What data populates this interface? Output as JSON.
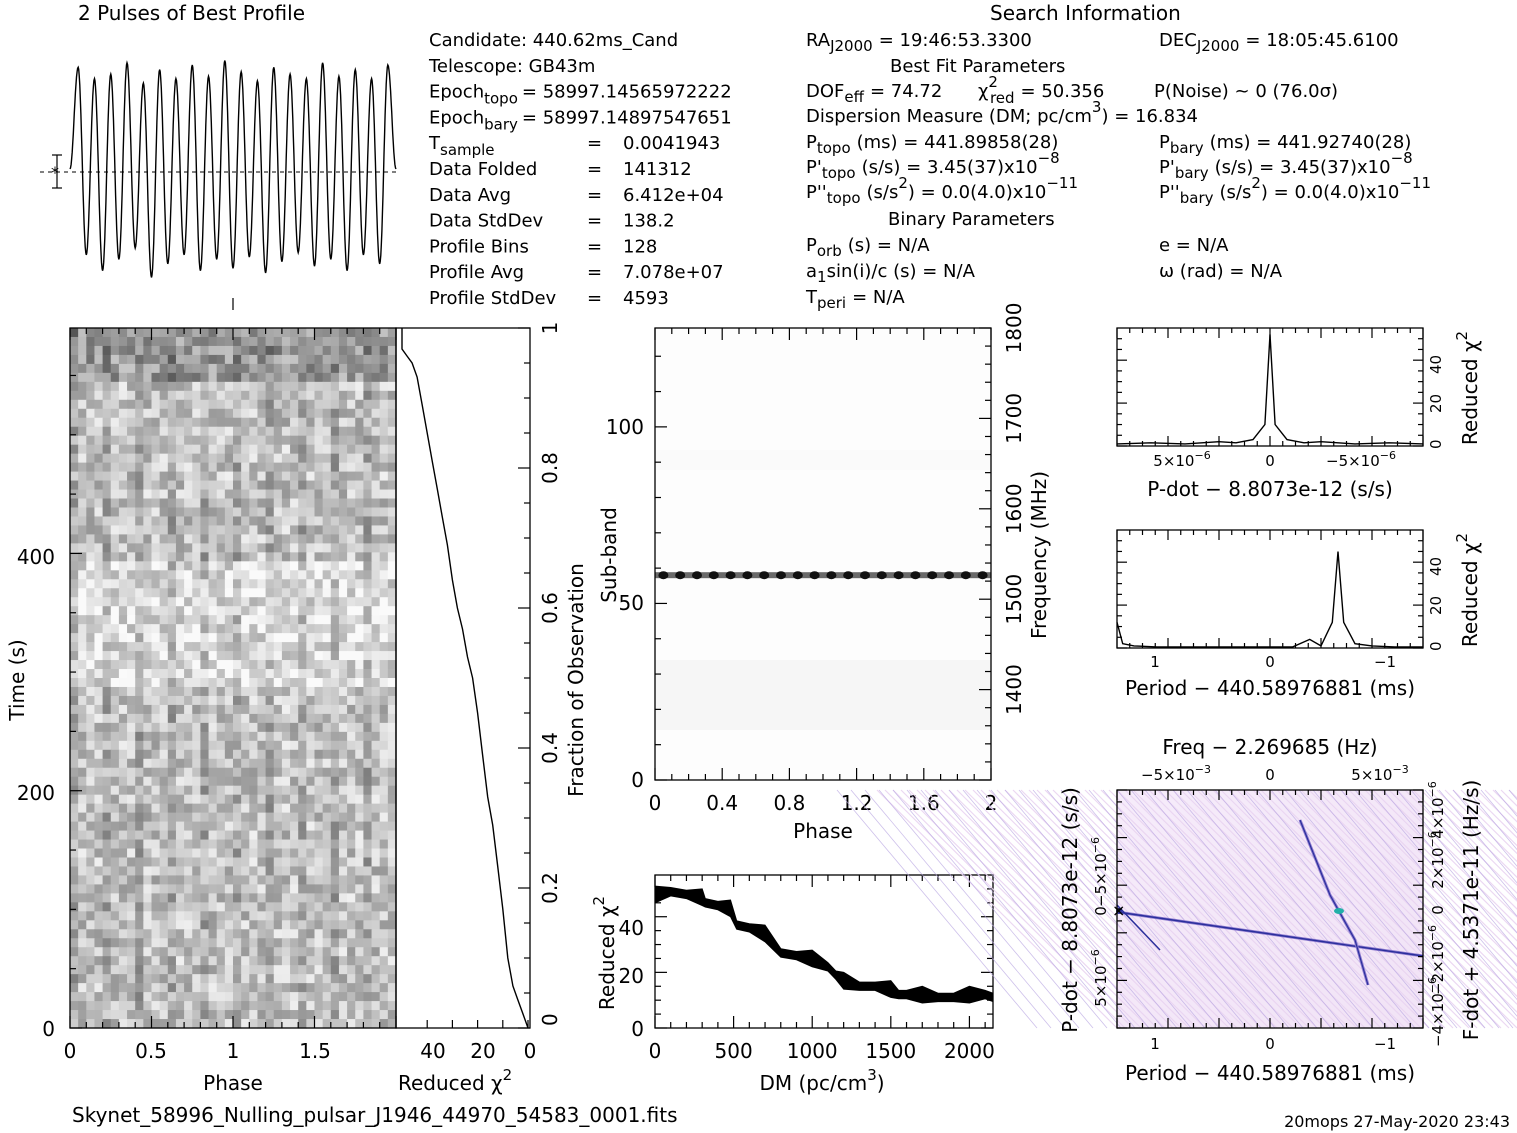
{
  "header": {
    "left_title": "2 Pulses of Best Profile",
    "search_title": "Search Information",
    "best_fit_title": "Best Fit Parameters",
    "binary_title": "Binary Parameters"
  },
  "info_left": [
    {
      "label": "Candidate:  440.62ms_Cand"
    },
    {
      "label": "Telescope:  GB43m"
    },
    {
      "label": "Epoch",
      "sub": "topo",
      "value": "= 58997.14565972222"
    },
    {
      "label": "Epoch",
      "sub": "bary",
      "value": "= 58997.14897547651"
    },
    {
      "label": "T",
      "sub": "sample",
      "eq": "=",
      "value": "0.0041943"
    },
    {
      "label": "Data Folded",
      "eq": "=",
      "value": "141312"
    },
    {
      "label": "Data Avg",
      "eq": "=",
      "value": "6.412e+04"
    },
    {
      "label": "Data StdDev",
      "eq": "=",
      "value": "138.2"
    },
    {
      "label": "Profile Bins",
      "eq": "=",
      "value": "128"
    },
    {
      "label": "Profile Avg",
      "eq": "=",
      "value": "7.078e+07"
    },
    {
      "label": "Profile StdDev",
      "eq": "=",
      "value": "4593"
    }
  ],
  "search_info": {
    "ra_label": "RA",
    "ra_sub": "J2000",
    "ra_value": "= 19:46:53.3300",
    "dec_label": "DEC",
    "dec_sub": "J2000",
    "dec_value": "= 18:05:45.6100",
    "dof_label": "DOF",
    "dof_sub": "eff",
    "dof_value": "= 74.72",
    "chi_label": "χ",
    "chi_sup": "2",
    "chi_sub": "red",
    "chi_value": "= 50.356",
    "pnoise": "P(Noise) ~ 0   (76.0σ)",
    "dm_line_a": "Dispersion Measure (DM; pc/cm",
    "dm_line_sup": "3",
    "dm_line_b": ") = 16.834",
    "ptopo_label": "P",
    "ptopo_sub": "topo",
    "ptopo_value": "(ms) =  441.89858(28)",
    "pbary_label": "P",
    "pbary_sub": "bary",
    "pbary_value": "(ms) =  441.92740(28)",
    "pdtopo_label": "P'",
    "pdtopo_sub": "topo",
    "pdtopo_value": "(s/s) =  3.45(37)x10",
    "pdtopo_exp": "−8",
    "pdbary_label": "P'",
    "pdbary_sub": "bary",
    "pdbary_value": "(s/s) =  3.45(37)x10",
    "pdbary_exp": "−8",
    "pddtopo_label": "P''",
    "pddtopo_sub": "topo",
    "pddtopo_a": "(s/s",
    "pddtopo_sup": "2",
    "pddtopo_value": ") = 0.0(4.0)x10",
    "pddtopo_exp": "−11",
    "pddbary_label": "P''",
    "pddbary_sub": "bary",
    "pddbary_a": "(s/s",
    "pddbary_sup": "2",
    "pddbary_value": ") = 0.0(4.0)x10",
    "pddbary_exp": "−11"
  },
  "binary": {
    "porb_label": "P",
    "porb_sub": "orb",
    "porb_value": "(s) = N/A",
    "a1_a": "a",
    "a1_sub": "1",
    "a1_b": "sin(i)/c (s) = N/A",
    "tperi_label": "T",
    "tperi_sub": "peri",
    "tperi_value": "= N/A",
    "e_line": "e = N/A",
    "omega_line": "ω (rad) = N/A"
  },
  "axes": {
    "time_label": "Time (s)",
    "phase_label": "Phase",
    "redchi_a": "Reduced χ",
    "redchi_sup": "2",
    "frac_label": "Fraction of Observation",
    "subband_label": "Sub-band",
    "freq_label": "Frequency (MHz)",
    "dm_a": "DM (pc/cm",
    "dm_sup": "3",
    "dm_b": ")",
    "pdot_label": "P-dot − 8.8073e-12 (s/s)",
    "period_label": "Period − 440.58976881 (ms)",
    "freq_top_label": "Freq − 2.269685 (Hz)",
    "pdot_left_label": "P-dot − 8.8073e-12 (s/s)",
    "fdot_right_label": "F-dot + 4.5371e-11 (Hz/s)"
  },
  "ticks": {
    "time_y": [
      "0",
      "200",
      "400"
    ],
    "phase_x": [
      "0",
      "0.5",
      "1",
      "1.5"
    ],
    "redchi_x": [
      "40",
      "20",
      "0"
    ],
    "frac_y": [
      "0",
      "0.2",
      "0.4",
      "0.6",
      "0.8",
      "1"
    ],
    "subband_y": [
      "0",
      "50",
      "100"
    ],
    "freq_y": [
      "1400",
      "1500",
      "1600",
      "1700",
      "1800"
    ],
    "phase2_x": [
      "0",
      "0.4",
      "0.8",
      "1.2",
      "1.6",
      "2"
    ],
    "dm_x": [
      "0",
      "500",
      "1000",
      "1500",
      "2000"
    ],
    "dmchi_y": [
      "0",
      "20",
      "40"
    ],
    "pdot_x_a": "5×10",
    "pdot_x_a_exp": "−6",
    "pdot_x_b": "0",
    "pdot_x_c": "−5×10",
    "pdot_x_c_exp": "−6",
    "small_chi_y": [
      "0",
      "20",
      "40"
    ],
    "period_x": [
      "1",
      "0",
      "−1"
    ],
    "freq_top_a": "−5×10",
    "freq_top_a_exp": "−3",
    "freq_top_b": "0",
    "freq_top_c": "5×10",
    "freq_top_c_exp": "−3",
    "pp_left_a": "−5×10",
    "pp_left_exp": "−6",
    "pp_left_b": "0",
    "pp_left_c": "5×10",
    "pp_right_a": "4×10",
    "pp_right_exp": "−6",
    "pp_right_b": "2×10",
    "pp_right_c": "0",
    "pp_right_d": "−2×10",
    "pp_right_e": "−4×10"
  },
  "footer": {
    "filename": "Skynet_58996_Nulling_pulsar_J1946_44970_54583_0001.fits",
    "stamp": "20mops 27-May-2020 23:43"
  },
  "chart_data": [
    {
      "type": "line",
      "name": "profile",
      "title": "2 Pulses of Best Profile",
      "x_range": [
        0,
        2
      ],
      "pulses_shown": 2,
      "oscillations_per_pulse": 10,
      "note_values": "relative amplitude samples",
      "values": [
        0.5,
        0.95,
        0.12,
        0.9,
        0.05,
        0.92,
        0.1,
        0.97,
        0.15,
        0.88,
        0.02,
        0.94,
        0.08,
        0.9,
        0.12,
        0.96,
        0.05,
        0.91,
        0.1,
        0.98,
        0.06,
        0.93,
        0.11,
        0.89,
        0.04,
        0.95,
        0.09,
        0.92,
        0.13,
        0.9,
        0.07,
        0.97,
        0.1,
        0.91,
        0.05,
        0.94,
        0.12,
        0.9,
        0.08,
        0.96,
        0.5
      ]
    },
    {
      "type": "heatmap",
      "name": "time-phase",
      "xlabel": "Phase",
      "ylabel": "Time (s)",
      "xlim": [
        0,
        2
      ],
      "ylim": [
        0,
        590
      ]
    },
    {
      "type": "line",
      "name": "reduced-chi2-vs-fraction",
      "xlabel": "Reduced χ2",
      "ylabel": "Fraction of Observation",
      "xlim": [
        50,
        0
      ],
      "ylim": [
        0,
        1
      ],
      "x": [
        0,
        2,
        4,
        6,
        8,
        10,
        12,
        14,
        16,
        18,
        20,
        22,
        24,
        26,
        28,
        30,
        32,
        34,
        36,
        38,
        40,
        42,
        44,
        46,
        48,
        50,
        50
      ],
      "y": [
        0.0,
        0.02,
        0.04,
        0.06,
        0.1,
        0.17,
        0.23,
        0.29,
        0.33,
        0.39,
        0.45,
        0.5,
        0.53,
        0.57,
        0.6,
        0.64,
        0.69,
        0.73,
        0.77,
        0.81,
        0.85,
        0.89,
        0.93,
        0.95,
        0.96,
        0.97,
        1.0
      ]
    },
    {
      "type": "heatmap",
      "name": "subband-phase",
      "xlabel": "Phase",
      "ylabel": "Sub-band",
      "y2label": "Frequency (MHz)",
      "xlim": [
        0,
        2
      ],
      "ylim": [
        0,
        128
      ],
      "y2lim": [
        1300,
        1800
      ],
      "bright_subband": 58
    },
    {
      "type": "line",
      "name": "dm-chi2",
      "xlabel": "DM (pc/cm3)",
      "ylabel": "Reduced χ2",
      "xlim": [
        0,
        2150
      ],
      "ylim": [
        0,
        55
      ],
      "x": [
        0,
        100,
        200,
        300,
        320,
        400,
        480,
        520,
        600,
        700,
        800,
        900,
        1000,
        1100,
        1150,
        1200,
        1300,
        1400,
        1500,
        1550,
        1600,
        1700,
        1800,
        1900,
        2000,
        2100,
        2150
      ],
      "y": [
        48,
        49,
        48,
        47,
        45,
        44,
        43,
        37,
        36,
        34,
        27,
        26,
        25,
        22,
        19,
        17,
        15,
        15,
        14,
        12,
        12,
        12,
        11,
        11,
        12,
        12,
        11
      ]
    },
    {
      "type": "line",
      "name": "pdot-chi2",
      "xlabel": "P-dot − 8.8073e-12 (s/s)",
      "ylabel": "Reduced χ2",
      "xlim": [
        9e-06,
        -9e-06
      ],
      "ylim": [
        0,
        55
      ],
      "x": [
        9e-06,
        7e-06,
        5e-06,
        3e-06,
        2e-06,
        1e-06,
        3e-07,
        0,
        -3e-07,
        -1e-06,
        -2e-06,
        -3e-06,
        -5e-06,
        -7e-06,
        -9e-06
      ],
      "y": [
        1,
        1.5,
        1,
        2,
        1.5,
        3,
        10,
        52,
        10,
        3,
        1.5,
        2,
        1,
        1.5,
        1
      ]
    },
    {
      "type": "line",
      "name": "period-chi2",
      "xlabel": "Period − 440.58976881 (ms)",
      "ylabel": "Reduced χ2",
      "xlim": [
        1.35,
        -1.35
      ],
      "ylim": [
        0,
        55
      ],
      "x": [
        1.35,
        1.3,
        1.2,
        1.0,
        0.6,
        0.3,
        0,
        -0.2,
        -0.35,
        -0.45,
        -0.55,
        -0.6,
        -0.65,
        -0.75,
        -0.9,
        -1.1,
        -1.35
      ],
      "y": [
        12,
        2,
        1,
        0.5,
        0.5,
        0.5,
        0.5,
        0.5,
        4,
        1,
        12,
        45,
        12,
        2,
        1,
        0.5,
        0.5
      ]
    },
    {
      "type": "heatmap",
      "name": "period-pdot",
      "xlabel": "Period − 440.58976881 (ms)",
      "ylabel": "P-dot − 8.8073e-12 (s/s)",
      "x2label": "Freq − 2.269685 (Hz)",
      "y2label": "F-dot + 4.5371e-11 (Hz/s)",
      "colors": [
        "#ffffff",
        "#e9d4f1",
        "#8f7bd0",
        "#2a2f9c",
        "#22b0a8"
      ]
    }
  ]
}
